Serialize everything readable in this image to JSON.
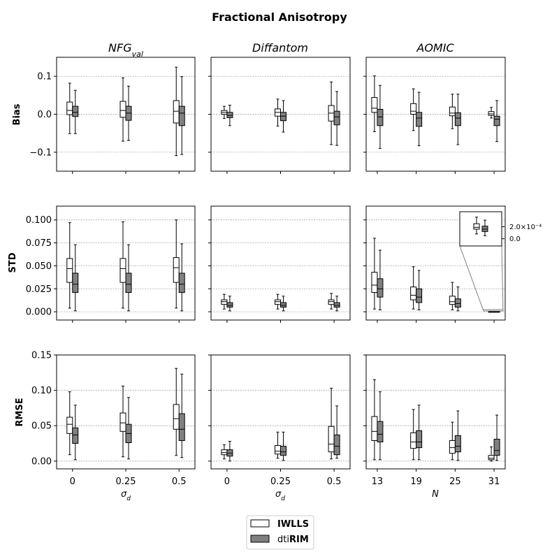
{
  "title": "Fractional Anisotropy",
  "columns": [
    {
      "title_main": "NFG",
      "title_sub": "val",
      "xlabel_main": "σ",
      "xlabel_sub": "d"
    },
    {
      "title_main": "Diffantom",
      "title_sub": "",
      "xlabel_main": "σ",
      "xlabel_sub": "d"
    },
    {
      "title_main": "AOMIC",
      "title_sub": "",
      "xlabel_main": "N",
      "xlabel_sub": ""
    }
  ],
  "rows": [
    "Bias",
    "STD",
    "RMSE"
  ],
  "legend": [
    {
      "name": "IWLLS",
      "prefix": "",
      "bold": "IWLLS",
      "color": "#ffffff"
    },
    {
      "name": "dtiRIM",
      "prefix": "dti",
      "bold": "RIM",
      "color": "#808080"
    }
  ],
  "colors": {
    "iwlls": "#ffffff",
    "rim": "#808080",
    "edge": "#000000",
    "grid": "#999999"
  },
  "inset": {
    "ticks": [
      "2.0×10⁻⁴",
      "0.0"
    ],
    "ytick_values": [
      0.0002,
      0.0
    ],
    "iwlls": {
      "whislo": 8e-05,
      "q1": 0.00016,
      "med": 0.00019,
      "q3": 0.00025,
      "whishi": 0.00036
    },
    "rim": {
      "whislo": 5e-05,
      "q1": 0.00012,
      "med": 0.00016,
      "q3": 0.00021,
      "whishi": 0.00031
    }
  },
  "chart_data": [
    {
      "type": "box",
      "row": "Bias",
      "column": "NFGval",
      "categories": [
        "0",
        "0.25",
        "0.5"
      ],
      "ylim": [
        -0.15,
        0.15
      ],
      "yticks": [
        0.1,
        0.0,
        -0.1
      ],
      "ytick_labels": [
        "0.1",
        "0.0",
        "−0.1"
      ],
      "show_ytick_labels": true,
      "series": [
        {
          "name": "IWLLS",
          "boxes": [
            {
              "whislo": -0.051,
              "q1": -0.001,
              "med": 0.01,
              "q3": 0.032,
              "whishi": 0.082
            },
            {
              "whislo": -0.071,
              "q1": -0.008,
              "med": 0.01,
              "q3": 0.034,
              "whishi": 0.096
            },
            {
              "whislo": -0.109,
              "q1": -0.023,
              "med": 0.008,
              "q3": 0.036,
              "whishi": 0.124
            }
          ]
        },
        {
          "name": "dtiRIM",
          "boxes": [
            {
              "whislo": -0.051,
              "q1": -0.006,
              "med": 0.005,
              "q3": 0.021,
              "whishi": 0.063
            },
            {
              "whislo": -0.069,
              "q1": -0.016,
              "med": 0.003,
              "q3": 0.021,
              "whishi": 0.074
            },
            {
              "whislo": -0.106,
              "q1": -0.03,
              "med": 0.003,
              "q3": 0.021,
              "whishi": 0.099
            }
          ]
        }
      ]
    },
    {
      "type": "box",
      "row": "Bias",
      "column": "Diffantom",
      "categories": [
        "0",
        "0.25",
        "0.5"
      ],
      "ylim": [
        -0.15,
        0.15
      ],
      "yticks": [
        0.1,
        0.0,
        -0.1
      ],
      "ytick_labels": [
        "0.1",
        "0.0",
        "−0.1"
      ],
      "show_ytick_labels": false,
      "series": [
        {
          "name": "IWLLS",
          "boxes": [
            {
              "whislo": -0.011,
              "q1": 0.0,
              "med": 0.005,
              "q3": 0.01,
              "whishi": 0.021
            },
            {
              "whislo": -0.031,
              "q1": -0.005,
              "med": 0.005,
              "q3": 0.014,
              "whishi": 0.04
            },
            {
              "whislo": -0.08,
              "q1": -0.018,
              "med": 0.003,
              "q3": 0.023,
              "whishi": 0.085
            }
          ]
        },
        {
          "name": "dtiRIM",
          "boxes": [
            {
              "whislo": -0.03,
              "q1": -0.009,
              "med": -0.003,
              "q3": 0.005,
              "whishi": 0.024
            },
            {
              "whislo": -0.047,
              "q1": -0.017,
              "med": -0.005,
              "q3": 0.005,
              "whishi": 0.036
            },
            {
              "whislo": -0.082,
              "q1": -0.028,
              "med": -0.007,
              "q3": 0.008,
              "whishi": 0.06
            }
          ]
        }
      ]
    },
    {
      "type": "box",
      "row": "Bias",
      "column": "AOMIC",
      "categories": [
        "13",
        "19",
        "25",
        "31"
      ],
      "ylim": [
        -0.15,
        0.15
      ],
      "yticks": [
        0.1,
        0.0,
        -0.1
      ],
      "ytick_labels": [
        "0.1",
        "0.0",
        "−0.1"
      ],
      "show_ytick_labels": false,
      "series": [
        {
          "name": "IWLLS",
          "boxes": [
            {
              "whislo": -0.046,
              "q1": 0.005,
              "med": 0.016,
              "q3": 0.044,
              "whishi": 0.101
            },
            {
              "whislo": -0.043,
              "q1": 0.0,
              "med": 0.008,
              "q3": 0.028,
              "whishi": 0.067
            },
            {
              "whislo": -0.038,
              "q1": -0.004,
              "med": 0.003,
              "q3": 0.019,
              "whishi": 0.053
            },
            {
              "whislo": -0.01,
              "q1": -0.003,
              "med": 0.001,
              "q3": 0.007,
              "whishi": 0.018
            }
          ]
        },
        {
          "name": "dtiRIM",
          "boxes": [
            {
              "whislo": -0.09,
              "q1": -0.03,
              "med": -0.007,
              "q3": 0.013,
              "whishi": 0.076
            },
            {
              "whislo": -0.083,
              "q1": -0.032,
              "med": -0.01,
              "q3": 0.005,
              "whishi": 0.058
            },
            {
              "whislo": -0.08,
              "q1": -0.03,
              "med": -0.01,
              "q3": 0.004,
              "whishi": 0.053
            },
            {
              "whislo": -0.072,
              "q1": -0.03,
              "med": -0.013,
              "q3": -0.005,
              "whishi": 0.036
            }
          ]
        }
      ]
    },
    {
      "type": "box",
      "row": "STD",
      "column": "NFGval",
      "categories": [
        "0",
        "0.25",
        "0.5"
      ],
      "ylim": [
        -0.009,
        0.115
      ],
      "yticks": [
        0.1,
        0.075,
        0.05,
        0.025,
        0.0
      ],
      "ytick_labels": [
        "0.100",
        "0.075",
        "0.050",
        "0.025",
        "0.000"
      ],
      "show_ytick_labels": true,
      "series": [
        {
          "name": "IWLLS",
          "boxes": [
            {
              "whislo": 0.004,
              "q1": 0.032,
              "med": 0.047,
              "q3": 0.058,
              "whishi": 0.097
            },
            {
              "whislo": 0.004,
              "q1": 0.032,
              "med": 0.047,
              "q3": 0.058,
              "whishi": 0.098
            },
            {
              "whislo": 0.004,
              "q1": 0.032,
              "med": 0.048,
              "q3": 0.059,
              "whishi": 0.1
            }
          ]
        },
        {
          "name": "dtiRIM",
          "boxes": [
            {
              "whislo": 0.001,
              "q1": 0.021,
              "med": 0.03,
              "q3": 0.042,
              "whishi": 0.073
            },
            {
              "whislo": 0.001,
              "q1": 0.021,
              "med": 0.03,
              "q3": 0.042,
              "whishi": 0.073
            },
            {
              "whislo": 0.001,
              "q1": 0.021,
              "med": 0.03,
              "q3": 0.042,
              "whishi": 0.074
            }
          ]
        }
      ]
    },
    {
      "type": "box",
      "row": "STD",
      "column": "Diffantom",
      "categories": [
        "0",
        "0.25",
        "0.5"
      ],
      "ylim": [
        -0.009,
        0.115
      ],
      "yticks": [
        0.1,
        0.075,
        0.05,
        0.025,
        0.0
      ],
      "ytick_labels": [
        "0.100",
        "0.075",
        "0.050",
        "0.025",
        "0.000"
      ],
      "show_ytick_labels": false,
      "series": [
        {
          "name": "IWLLS",
          "boxes": [
            {
              "whislo": 0.003,
              "q1": 0.008,
              "med": 0.011,
              "q3": 0.013,
              "whishi": 0.019
            },
            {
              "whislo": 0.003,
              "q1": 0.008,
              "med": 0.011,
              "q3": 0.013,
              "whishi": 0.019
            },
            {
              "whislo": 0.003,
              "q1": 0.008,
              "med": 0.011,
              "q3": 0.013,
              "whishi": 0.02
            }
          ]
        },
        {
          "name": "dtiRIM",
          "boxes": [
            {
              "whislo": 0.001,
              "q1": 0.005,
              "med": 0.007,
              "q3": 0.01,
              "whishi": 0.017
            },
            {
              "whislo": 0.001,
              "q1": 0.005,
              "med": 0.007,
              "q3": 0.01,
              "whishi": 0.017
            },
            {
              "whislo": 0.001,
              "q1": 0.005,
              "med": 0.007,
              "q3": 0.01,
              "whishi": 0.017
            }
          ]
        }
      ]
    },
    {
      "type": "box",
      "row": "STD",
      "column": "AOMIC",
      "categories": [
        "13",
        "19",
        "25",
        "31"
      ],
      "ylim": [
        -0.009,
        0.115
      ],
      "yticks": [
        0.1,
        0.075,
        0.05,
        0.025,
        0.0
      ],
      "ytick_labels": [
        "0.100",
        "0.075",
        "0.050",
        "0.025",
        "0.000"
      ],
      "show_ytick_labels": false,
      "series": [
        {
          "name": "IWLLS",
          "boxes": [
            {
              "whislo": 0.003,
              "q1": 0.021,
              "med": 0.029,
              "q3": 0.043,
              "whishi": 0.08
            },
            {
              "whislo": 0.003,
              "q1": 0.013,
              "med": 0.018,
              "q3": 0.027,
              "whishi": 0.049
            },
            {
              "whislo": 0.002,
              "q1": 0.008,
              "med": 0.011,
              "q3": 0.017,
              "whishi": 0.032
            },
            {
              "whislo": 0.0,
              "q1": 0.0,
              "med": 0.0,
              "q3": 0.0002,
              "whishi": 0.0004
            }
          ]
        },
        {
          "name": "dtiRIM",
          "boxes": [
            {
              "whislo": 0.002,
              "q1": 0.016,
              "med": 0.025,
              "q3": 0.036,
              "whishi": 0.067
            },
            {
              "whislo": 0.002,
              "q1": 0.01,
              "med": 0.016,
              "q3": 0.025,
              "whishi": 0.045
            },
            {
              "whislo": 0.001,
              "q1": 0.005,
              "med": 0.009,
              "q3": 0.014,
              "whishi": 0.027
            },
            {
              "whislo": 0.0,
              "q1": 0.0,
              "med": 0.0,
              "q3": 0.0002,
              "whishi": 0.0003
            }
          ]
        }
      ]
    },
    {
      "type": "box",
      "row": "RMSE",
      "column": "NFGval",
      "categories": [
        "0",
        "0.25",
        "0.5"
      ],
      "ylim": [
        -0.011,
        0.15
      ],
      "yticks": [
        0.15,
        0.1,
        0.05,
        0.0
      ],
      "ytick_labels": [
        "0.15",
        "0.10",
        "0.05",
        "0.00"
      ],
      "show_ytick_labels": true,
      "series": [
        {
          "name": "IWLLS",
          "boxes": [
            {
              "whislo": 0.009,
              "q1": 0.039,
              "med": 0.052,
              "q3": 0.062,
              "whishi": 0.098
            },
            {
              "whislo": 0.006,
              "q1": 0.042,
              "med": 0.054,
              "q3": 0.068,
              "whishi": 0.106
            },
            {
              "whislo": 0.008,
              "q1": 0.045,
              "med": 0.06,
              "q3": 0.08,
              "whishi": 0.131
            }
          ]
        },
        {
          "name": "dtiRIM",
          "boxes": [
            {
              "whislo": 0.002,
              "q1": 0.025,
              "med": 0.037,
              "q3": 0.047,
              "whishi": 0.079
            },
            {
              "whislo": 0.003,
              "q1": 0.026,
              "med": 0.039,
              "q3": 0.052,
              "whishi": 0.09
            },
            {
              "whislo": 0.005,
              "q1": 0.029,
              "med": 0.045,
              "q3": 0.067,
              "whishi": 0.123
            }
          ]
        }
      ]
    },
    {
      "type": "box",
      "row": "RMSE",
      "column": "Diffantom",
      "categories": [
        "0",
        "0.25",
        "0.5"
      ],
      "ylim": [
        -0.011,
        0.15
      ],
      "yticks": [
        0.15,
        0.1,
        0.05,
        0.0
      ],
      "ytick_labels": [
        "0.15",
        "0.10",
        "0.05",
        "0.00"
      ],
      "show_ytick_labels": false,
      "series": [
        {
          "name": "IWLLS",
          "boxes": [
            {
              "whislo": 0.003,
              "q1": 0.009,
              "med": 0.012,
              "q3": 0.016,
              "whishi": 0.023
            },
            {
              "whislo": 0.004,
              "q1": 0.01,
              "med": 0.014,
              "q3": 0.022,
              "whishi": 0.041
            },
            {
              "whislo": 0.003,
              "q1": 0.013,
              "med": 0.024,
              "q3": 0.049,
              "whishi": 0.103
            }
          ]
        },
        {
          "name": "dtiRIM",
          "boxes": [
            {
              "whislo": 0.0,
              "q1": 0.007,
              "med": 0.011,
              "q3": 0.016,
              "whishi": 0.028
            },
            {
              "whislo": 0.001,
              "q1": 0.008,
              "med": 0.013,
              "q3": 0.021,
              "whishi": 0.041
            },
            {
              "whislo": 0.004,
              "q1": 0.009,
              "med": 0.021,
              "q3": 0.037,
              "whishi": 0.078
            }
          ]
        }
      ]
    },
    {
      "type": "box",
      "row": "RMSE",
      "column": "AOMIC",
      "categories": [
        "13",
        "19",
        "25",
        "31"
      ],
      "ylim": [
        -0.011,
        0.15
      ],
      "yticks": [
        0.15,
        0.1,
        0.05,
        0.0
      ],
      "ytick_labels": [
        "0.15",
        "0.10",
        "0.05",
        "0.00"
      ],
      "show_ytick_labels": false,
      "series": [
        {
          "name": "IWLLS",
          "boxes": [
            {
              "whislo": 0.002,
              "q1": 0.029,
              "med": 0.042,
              "q3": 0.063,
              "whishi": 0.115
            },
            {
              "whislo": 0.002,
              "q1": 0.018,
              "med": 0.027,
              "q3": 0.04,
              "whishi": 0.073
            },
            {
              "whislo": 0.002,
              "q1": 0.011,
              "med": 0.019,
              "q3": 0.029,
              "whishi": 0.055
            },
            {
              "whislo": 0.0,
              "q1": 0.002,
              "med": 0.004,
              "q3": 0.008,
              "whishi": 0.02
            }
          ]
        },
        {
          "name": "dtiRIM",
          "boxes": [
            {
              "whislo": 0.002,
              "q1": 0.027,
              "med": 0.038,
              "q3": 0.056,
              "whishi": 0.098
            },
            {
              "whislo": 0.002,
              "q1": 0.019,
              "med": 0.027,
              "q3": 0.043,
              "whishi": 0.079
            },
            {
              "whislo": 0.001,
              "q1": 0.013,
              "med": 0.021,
              "q3": 0.036,
              "whishi": 0.071
            },
            {
              "whislo": 0.001,
              "q1": 0.008,
              "med": 0.015,
              "q3": 0.031,
              "whishi": 0.065
            }
          ]
        }
      ]
    }
  ]
}
